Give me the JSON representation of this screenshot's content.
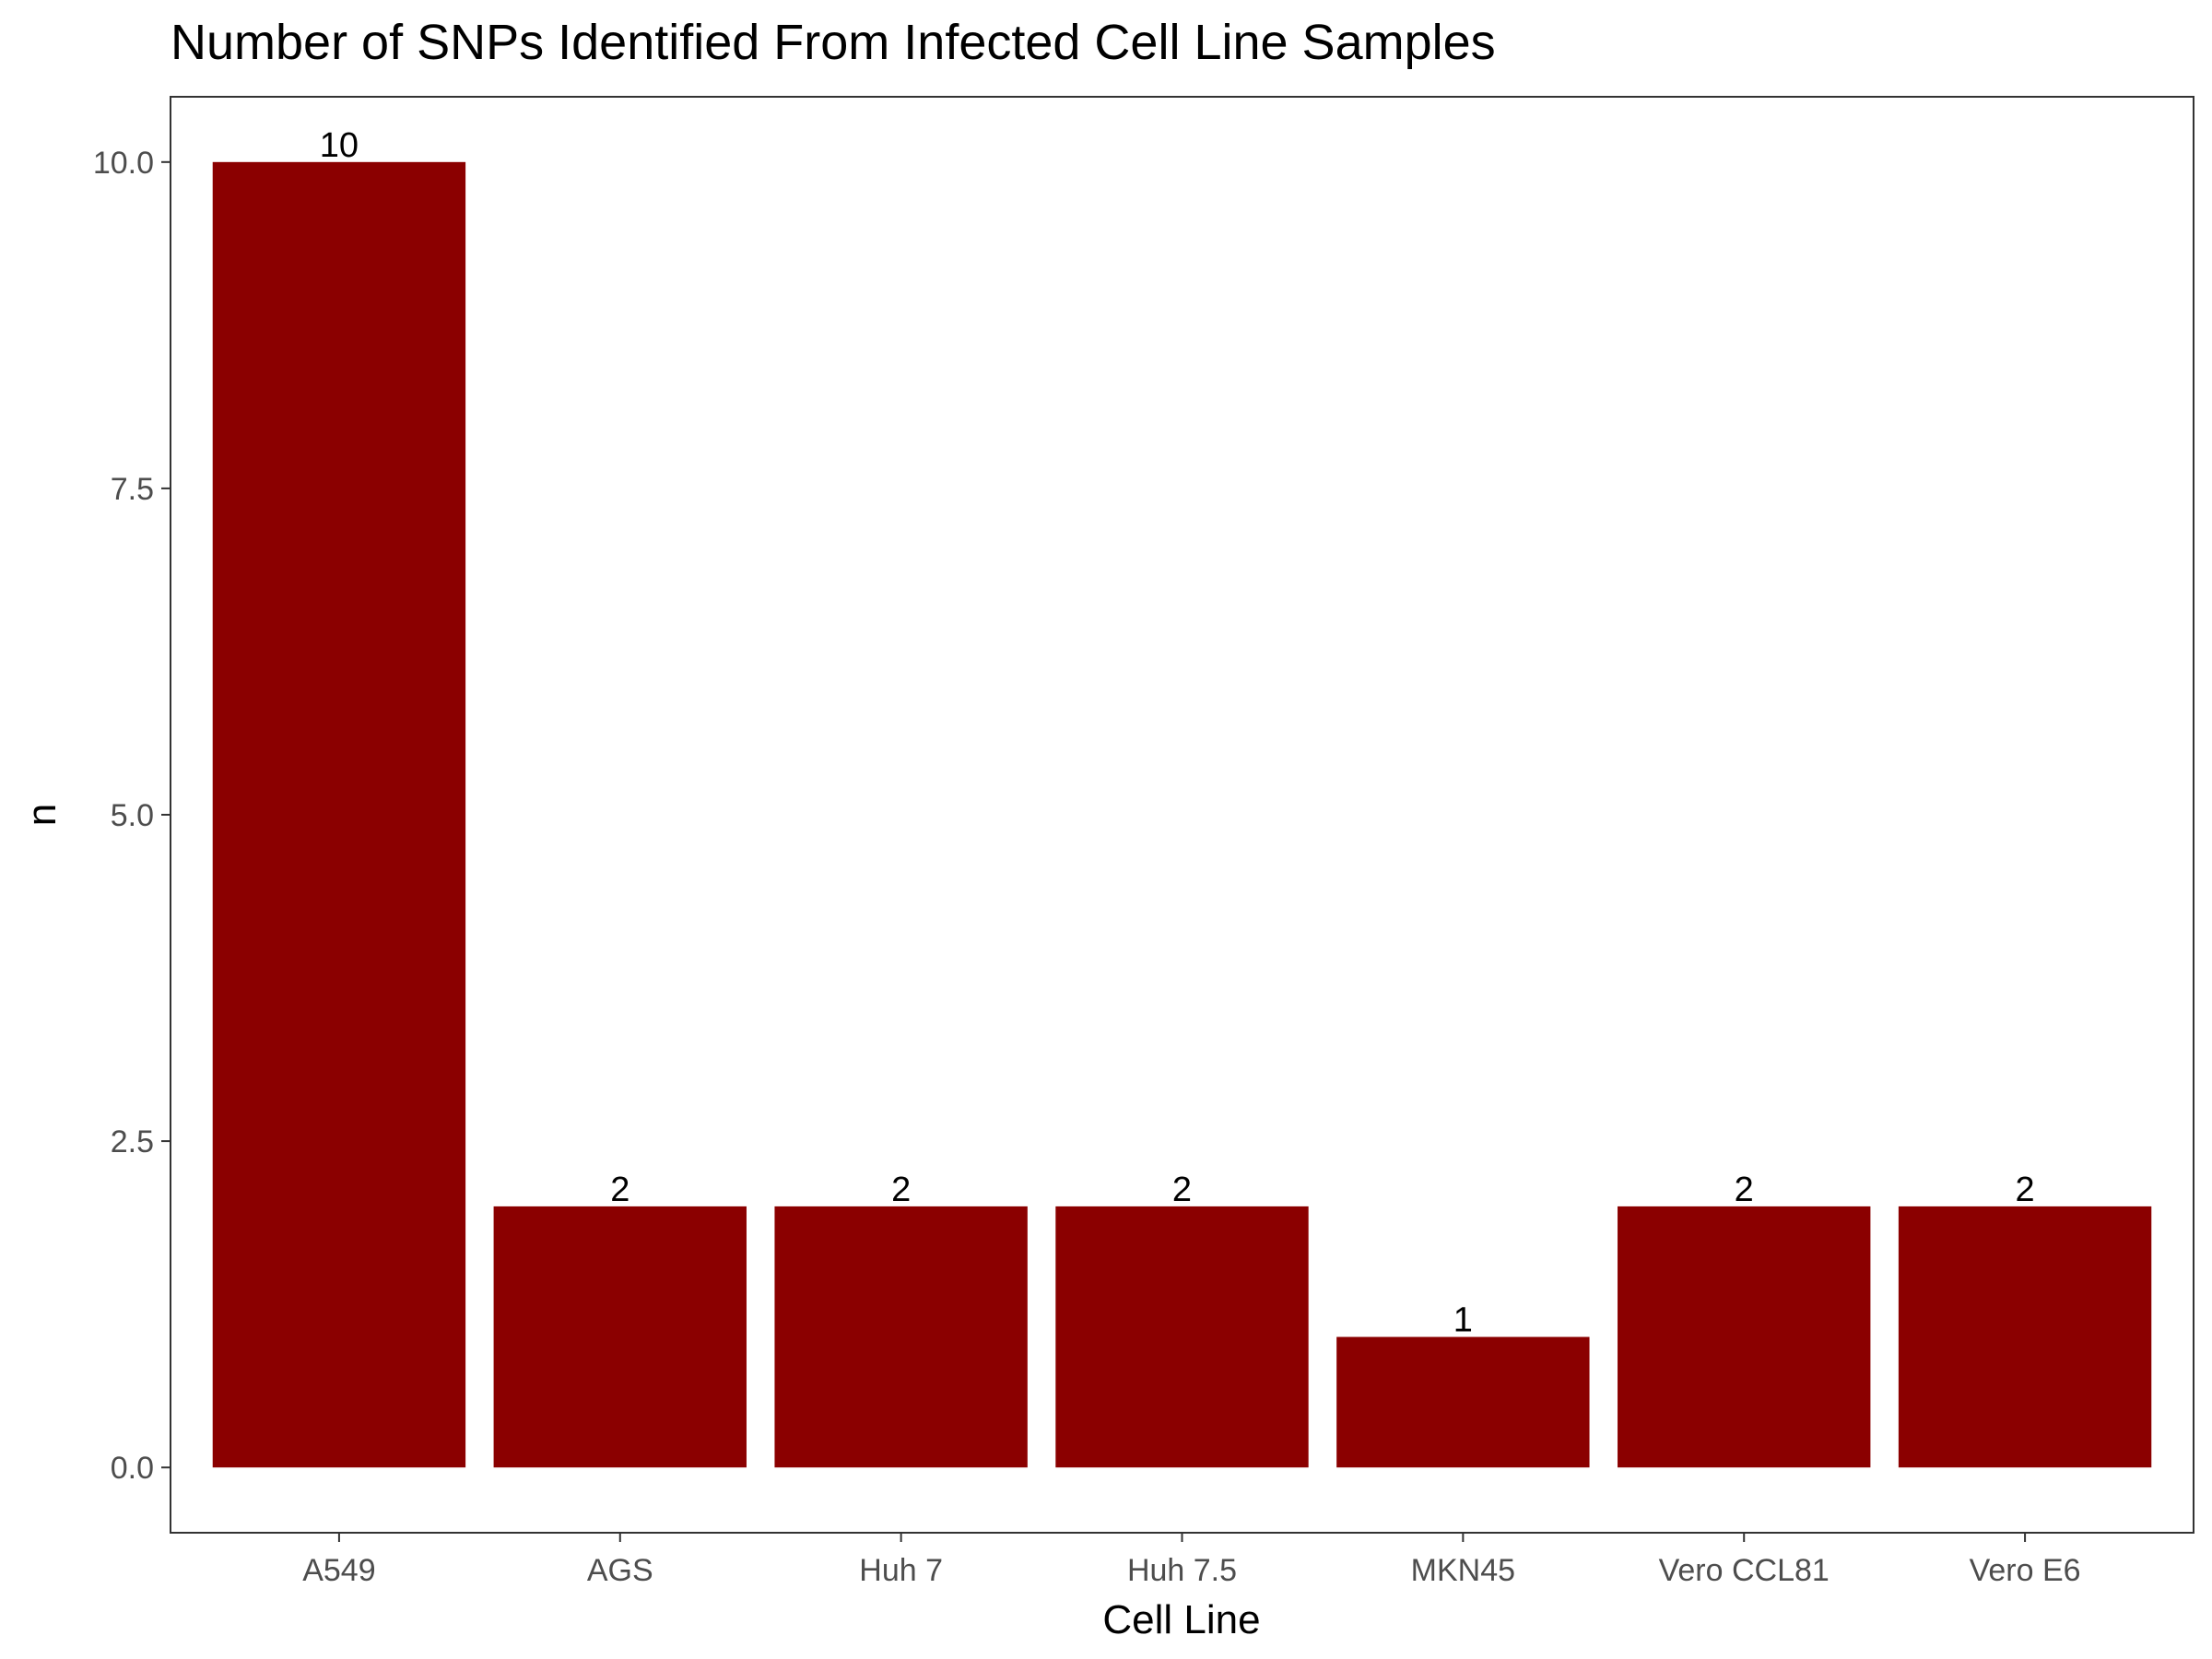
{
  "chart_data": {
    "type": "bar",
    "title": "Number of SNPs Identified From Infected Cell Line Samples",
    "xlabel": "Cell Line",
    "ylabel": "n",
    "categories": [
      "A549",
      "AGS",
      "Huh 7",
      "Huh 7.5",
      "MKN45",
      "Vero CCL81",
      "Vero E6"
    ],
    "values": [
      10,
      2,
      2,
      2,
      1,
      2,
      2
    ],
    "data_labels": [
      "10",
      "2",
      "2",
      "2",
      "1",
      "2",
      "2"
    ],
    "ylim": [
      -0.5,
      10.5
    ],
    "yticks": [
      0,
      2.5,
      5,
      7.5,
      10
    ],
    "ytick_labels": [
      "0.0",
      "2.5",
      "5.0",
      "7.5",
      "10.0"
    ],
    "grid": false,
    "legend": "none",
    "bar_color": "#8b0000"
  }
}
